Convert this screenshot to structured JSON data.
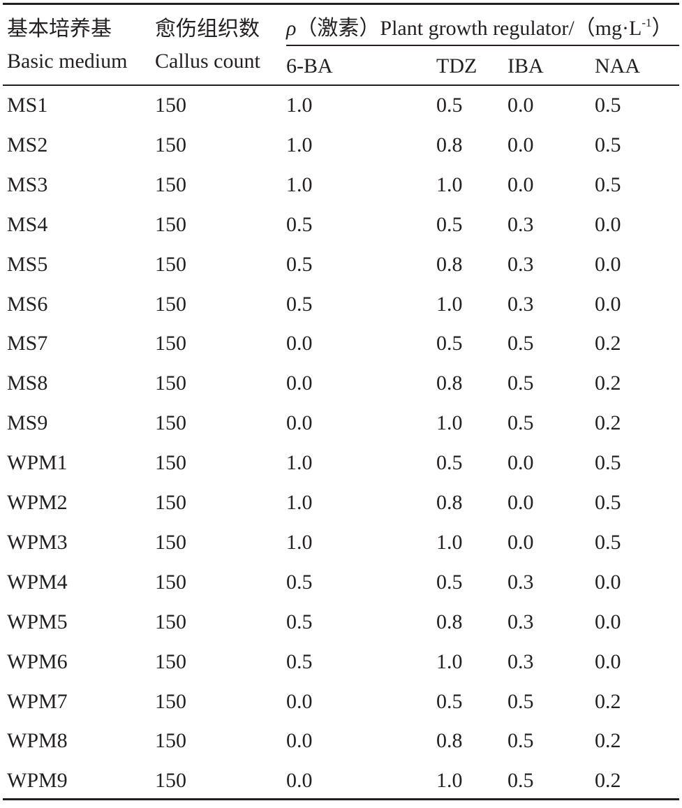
{
  "table": {
    "header": {
      "col0": {
        "zh": "基本培养基",
        "en": "Basic medium"
      },
      "col1": {
        "zh": "愈伤组织数",
        "en": "Callus count"
      },
      "group": {
        "symbol": "ρ",
        "text": "（激素）Plant growth regulator/（mg·L",
        "superscript": "-1",
        "close": "）"
      },
      "sub": [
        "6-BA",
        "TDZ",
        "IBA",
        "NAA"
      ]
    },
    "rows": [
      [
        "MS1",
        "150",
        "1.0",
        "0.5",
        "0.0",
        "0.5"
      ],
      [
        "MS2",
        "150",
        "1.0",
        "0.8",
        "0.0",
        "0.5"
      ],
      [
        "MS3",
        "150",
        "1.0",
        "1.0",
        "0.0",
        "0.5"
      ],
      [
        "MS4",
        "150",
        "0.5",
        "0.5",
        "0.3",
        "0.0"
      ],
      [
        "MS5",
        "150",
        "0.5",
        "0.8",
        "0.3",
        "0.0"
      ],
      [
        "MS6",
        "150",
        "0.5",
        "1.0",
        "0.3",
        "0.0"
      ],
      [
        "MS7",
        "150",
        "0.0",
        "0.5",
        "0.5",
        "0.2"
      ],
      [
        "MS8",
        "150",
        "0.0",
        "0.8",
        "0.5",
        "0.2"
      ],
      [
        "MS9",
        "150",
        "0.0",
        "1.0",
        "0.5",
        "0.2"
      ],
      [
        "WPM1",
        "150",
        "1.0",
        "0.5",
        "0.0",
        "0.5"
      ],
      [
        "WPM2",
        "150",
        "1.0",
        "0.8",
        "0.0",
        "0.5"
      ],
      [
        "WPM3",
        "150",
        "1.0",
        "1.0",
        "0.0",
        "0.5"
      ],
      [
        "WPM4",
        "150",
        "0.5",
        "0.5",
        "0.3",
        "0.0"
      ],
      [
        "WPM5",
        "150",
        "0.5",
        "0.8",
        "0.3",
        "0.0"
      ],
      [
        "WPM6",
        "150",
        "0.5",
        "1.0",
        "0.3",
        "0.0"
      ],
      [
        "WPM7",
        "150",
        "0.0",
        "0.5",
        "0.5",
        "0.2"
      ],
      [
        "WPM8",
        "150",
        "0.0",
        "0.8",
        "0.5",
        "0.2"
      ],
      [
        "WPM9",
        "150",
        "0.0",
        "1.0",
        "0.5",
        "0.2"
      ]
    ]
  }
}
